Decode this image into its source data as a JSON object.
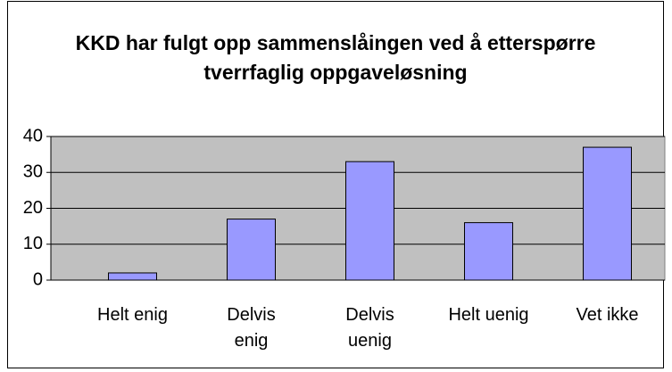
{
  "chart_data": {
    "type": "bar",
    "title": "KKD har fulgt opp sammenslåingen ved å etterspørre tverrfaglig oppgaveløsning",
    "categories": [
      "Helt enig",
      "Delvis enig",
      "Delvis uenig",
      "Helt uenig",
      "Vet ikke"
    ],
    "values": [
      2,
      17,
      33,
      16,
      37
    ],
    "color": "#9999ff",
    "ylim": [
      0,
      40
    ],
    "yticks": [
      0,
      10,
      20,
      30,
      40
    ],
    "grid": true
  }
}
